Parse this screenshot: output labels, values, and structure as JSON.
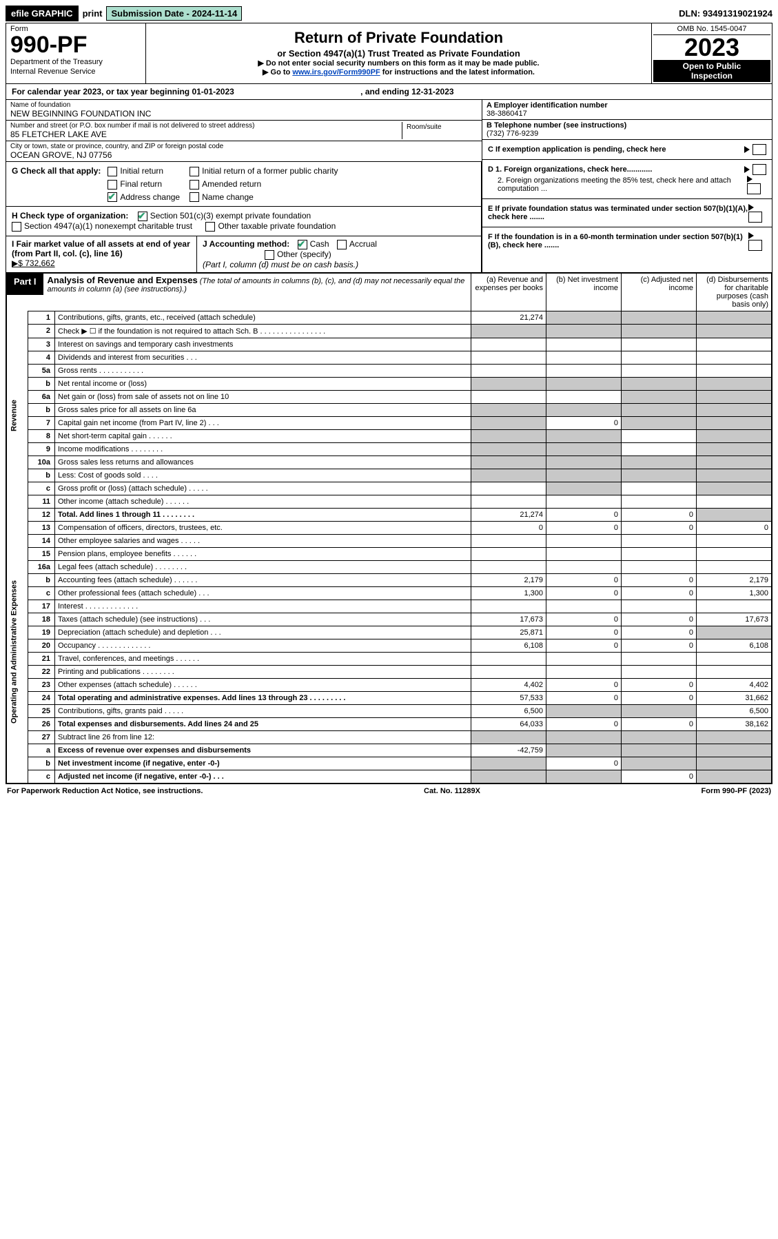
{
  "top": {
    "efile": "efile GRAPHIC",
    "print": "print",
    "submission_label": "Submission Date - 2024-11-14",
    "dln": "DLN: 93491319021924"
  },
  "header": {
    "form_word": "Form",
    "form_num": "990-PF",
    "dept1": "Department of the Treasury",
    "dept2": "Internal Revenue Service",
    "title": "Return of Private Foundation",
    "subtitle": "or Section 4947(a)(1) Trust Treated as Private Foundation",
    "note1": "▶ Do not enter social security numbers on this form as it may be made public.",
    "note2_pre": "▶ Go to ",
    "note2_link": "www.irs.gov/Form990PF",
    "note2_post": " for instructions and the latest information.",
    "omb": "OMB No. 1545-0047",
    "year": "2023",
    "inspection1": "Open to Public",
    "inspection2": "Inspection"
  },
  "cal_year": {
    "pre": "For calendar year 2023, or tax year beginning 01-01-2023",
    "mid": ", and ending 12-31-2023"
  },
  "name_block": {
    "name_label": "Name of foundation",
    "name": "NEW BEGINNING FOUNDATION INC",
    "addr_label": "Number and street (or P.O. box number if mail is not delivered to street address)",
    "addr": "85 FLETCHER LAKE AVE",
    "room_label": "Room/suite",
    "city_label": "City or town, state or province, country, and ZIP or foreign postal code",
    "city": "OCEAN GROVE, NJ  07756"
  },
  "right_info": {
    "a_label": "A Employer identification number",
    "a_val": "38-3860417",
    "b_label": "B Telephone number (see instructions)",
    "b_val": "(732) 776-9239",
    "c_label": "C If exemption application is pending, check here",
    "d1": "D 1. Foreign organizations, check here............",
    "d2": "2. Foreign organizations meeting the 85% test, check here and attach computation ...",
    "e": "E  If private foundation status was terminated under section 507(b)(1)(A), check here .......",
    "f": "F  If the foundation is in a 60-month termination under section 507(b)(1)(B), check here ......."
  },
  "g": {
    "label": "G Check all that apply:",
    "opts": {
      "initial": "Initial return",
      "initial_former": "Initial return of a former public charity",
      "final": "Final return",
      "amended": "Amended return",
      "address": "Address change",
      "name": "Name change"
    }
  },
  "h": {
    "label": "H Check type of organization:",
    "opt1": "Section 501(c)(3) exempt private foundation",
    "opt2": "Section 4947(a)(1) nonexempt charitable trust",
    "opt3": "Other taxable private foundation"
  },
  "i": {
    "label": "I Fair market value of all assets at end of year (from Part II, col. (c), line 16)",
    "arrow_val": "▶$  732,662"
  },
  "j": {
    "label": "J Accounting method:",
    "cash": "Cash",
    "accrual": "Accrual",
    "other": "Other (specify)",
    "note": "(Part I, column (d) must be on cash basis.)"
  },
  "part1": {
    "label": "Part I",
    "title": "Analysis of Revenue and Expenses",
    "desc": "(The total of amounts in columns (b), (c), and (d) may not necessarily equal the amounts in column (a) (see instructions).)",
    "col_a": "(a)   Revenue and expenses per books",
    "col_b": "(b)   Net investment income",
    "col_c": "(c)   Adjusted net income",
    "col_d": "(d)   Disbursements for charitable purposes (cash basis only)"
  },
  "sides": {
    "revenue": "Revenue",
    "expenses": "Operating and Administrative Expenses"
  },
  "rows": [
    {
      "n": "1",
      "d": "Contributions, gifts, grants, etc., received (attach schedule)",
      "a": "21,274",
      "g": {
        "b": true,
        "c": true,
        "d": true
      }
    },
    {
      "n": "2",
      "d": "Check ▶ ☐ if the foundation is not required to attach Sch. B   .   .   .   .   .   .   .   .   .   .   .   .   .   .   .   .",
      "g": {
        "a": true,
        "b": true,
        "c": true,
        "d": true
      }
    },
    {
      "n": "3",
      "d": "Interest on savings and temporary cash investments"
    },
    {
      "n": "4",
      "d": "Dividends and interest from securities   .   .   ."
    },
    {
      "n": "5a",
      "d": "Gross rents   .   .   .   .   .   .   .   .   .   .   ."
    },
    {
      "n": "b",
      "d": "Net rental income or (loss)  ",
      "g": {
        "a": true,
        "b": true,
        "c": true,
        "d": true
      }
    },
    {
      "n": "6a",
      "d": "Net gain or (loss) from sale of assets not on line 10",
      "g": {
        "c": true,
        "d": true
      }
    },
    {
      "n": "b",
      "d": "Gross sales price for all assets on line 6a",
      "g": {
        "a": true,
        "b": true,
        "c": true,
        "d": true
      }
    },
    {
      "n": "7",
      "d": "Capital gain net income (from Part IV, line 2)   .   .   .",
      "b": "0",
      "g": {
        "a": true,
        "c": true,
        "d": true
      }
    },
    {
      "n": "8",
      "d": "Net short-term capital gain   .   .   .   .   .   .",
      "g": {
        "a": true,
        "b": true,
        "d": true
      }
    },
    {
      "n": "9",
      "d": "Income modifications   .   .   .   .   .   .   .   .",
      "g": {
        "a": true,
        "b": true,
        "d": true
      }
    },
    {
      "n": "10a",
      "d": "Gross sales less returns and allowances",
      "g": {
        "a": true,
        "b": true,
        "c": true,
        "d": true
      }
    },
    {
      "n": "b",
      "d": "Less: Cost of goods sold   .   .   .   .",
      "g": {
        "a": true,
        "b": true,
        "c": true,
        "d": true
      }
    },
    {
      "n": "c",
      "d": "Gross profit or (loss) (attach schedule)   .   .   .   .   .",
      "g": {
        "b": true,
        "d": true
      }
    },
    {
      "n": "11",
      "d": "Other income (attach schedule)   .   .   .   .   .   ."
    },
    {
      "n": "12",
      "d": "Total. Add lines 1 through 11   .   .   .   .   .   .   .   .",
      "bold": true,
      "a": "21,274",
      "b": "0",
      "c": "0",
      "g": {
        "d": true
      }
    },
    {
      "n": "13",
      "d": "Compensation of officers, directors, trustees, etc.",
      "a": "0",
      "b": "0",
      "c": "0",
      "dd": "0"
    },
    {
      "n": "14",
      "d": "Other employee salaries and wages   .   .   .   .   ."
    },
    {
      "n": "15",
      "d": "Pension plans, employee benefits   .   .   .   .   .   ."
    },
    {
      "n": "16a",
      "d": "Legal fees (attach schedule)  .   .   .   .   .   .   .   ."
    },
    {
      "n": "b",
      "d": "Accounting fees (attach schedule)  .   .   .   .   .   .",
      "a": "2,179",
      "b": "0",
      "c": "0",
      "dd": "2,179"
    },
    {
      "n": "c",
      "d": "Other professional fees (attach schedule)   .   .   .",
      "a": "1,300",
      "b": "0",
      "c": "0",
      "dd": "1,300"
    },
    {
      "n": "17",
      "d": "Interest   .   .   .   .   .   .   .   .   .   .   .   .   ."
    },
    {
      "n": "18",
      "d": "Taxes (attach schedule) (see instructions)   .   .   .",
      "a": "17,673",
      "b": "0",
      "c": "0",
      "dd": "17,673"
    },
    {
      "n": "19",
      "d": "Depreciation (attach schedule) and depletion   .   .   .",
      "a": "25,871",
      "b": "0",
      "c": "0",
      "g": {
        "d": true
      }
    },
    {
      "n": "20",
      "d": "Occupancy  .   .   .   .   .   .   .   .   .   .   .   .   .",
      "a": "6,108",
      "b": "0",
      "c": "0",
      "dd": "6,108"
    },
    {
      "n": "21",
      "d": "Travel, conferences, and meetings   .   .   .   .   .   ."
    },
    {
      "n": "22",
      "d": "Printing and publications   .   .   .   .   .   .   .   ."
    },
    {
      "n": "23",
      "d": "Other expenses (attach schedule)   .   .   .   .   .   .",
      "a": "4,402",
      "b": "0",
      "c": "0",
      "dd": "4,402"
    },
    {
      "n": "24",
      "d": "Total operating and administrative expenses. Add lines 13 through 23   .   .   .   .   .   .   .   .   .",
      "bold": true,
      "a": "57,533",
      "b": "0",
      "c": "0",
      "dd": "31,662"
    },
    {
      "n": "25",
      "d": "Contributions, gifts, grants paid   .   .   .   .   .",
      "a": "6,500",
      "g": {
        "b": true,
        "c": true
      },
      "dd": "6,500"
    },
    {
      "n": "26",
      "d": "Total expenses and disbursements. Add lines 24 and 25",
      "bold": true,
      "a": "64,033",
      "b": "0",
      "c": "0",
      "dd": "38,162"
    },
    {
      "n": "27",
      "d": "Subtract line 26 from line 12:",
      "g": {
        "a": true,
        "b": true,
        "c": true,
        "d": true
      }
    },
    {
      "n": "a",
      "d": "Excess of revenue over expenses and disbursements",
      "bold": true,
      "a": "-42,759",
      "g": {
        "b": true,
        "c": true,
        "d": true
      }
    },
    {
      "n": "b",
      "d": "Net investment income (if negative, enter -0-)",
      "bold": true,
      "b": "0",
      "g": {
        "a": true,
        "c": true,
        "d": true
      }
    },
    {
      "n": "c",
      "d": "Adjusted net income (if negative, enter -0-)   .   .   .",
      "bold": true,
      "c": "0",
      "g": {
        "a": true,
        "b": true,
        "d": true
      }
    }
  ],
  "footer": {
    "left": "For Paperwork Reduction Act Notice, see instructions.",
    "mid": "Cat. No. 11289X",
    "right": "Form 990-PF (2023)"
  }
}
